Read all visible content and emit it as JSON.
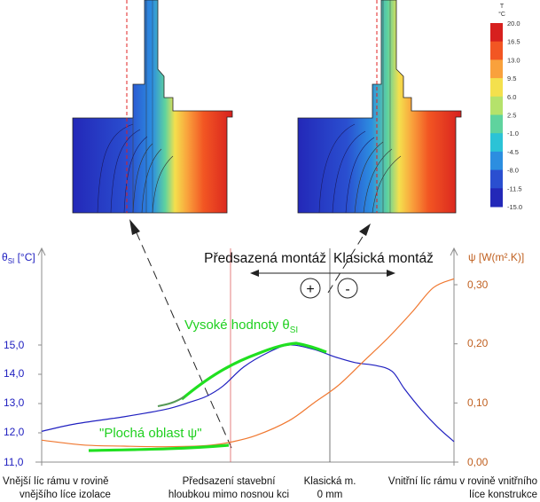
{
  "colorbar": {
    "unit_t": "T",
    "unit_c": "°C",
    "ticks": [
      "20.0",
      "16.5",
      "13.0",
      "9.5",
      "6.0",
      "2.5",
      "-1.0",
      "-4.5",
      "-8.0",
      "-11.5",
      "-15.0"
    ],
    "colors": [
      "#d7201e",
      "#f25623",
      "#f9a13c",
      "#f4e04d",
      "#b5e26b",
      "#5fd39e",
      "#2bc3d6",
      "#2c8ee0",
      "#2a4fd0",
      "#2328b8"
    ]
  },
  "annotations": {
    "mode_front": "Předsazená montáž",
    "mode_classic": "Klasická montáž",
    "plus_sign": "+",
    "minus_sign": "-",
    "high_values": "Vysoké hodnoty θ",
    "high_values_sub": "SI",
    "flat_area": "\"Plochá oblast ψ\""
  },
  "axes": {
    "left_label_main": "θ",
    "left_label_sub": "SI",
    "left_label_unit": " [°C]",
    "right_label": "ψ [W(m².K)]",
    "left_ticks": [
      "15,0",
      "14,0",
      "13,0",
      "12,0",
      "11,0"
    ],
    "right_ticks": [
      "0,30",
      "0,20",
      "0,10",
      "0,00"
    ]
  },
  "x_labels": {
    "left_1": "Vnější líc rámu v rovině",
    "left_2": "vnějšího líce izolace",
    "mid_1": "Předsazení stavební",
    "mid_2": "hloubkou mimo nosnou kci",
    "classic_1": "Klasická m.",
    "classic_2": "0 mm",
    "right_1": "Vnitřní líc rámu v rovině vnitřního",
    "right_2": "líce konstrukce"
  },
  "chart_data": {
    "type": "line",
    "y_left": {
      "label": "θSI [°C]",
      "ylim": [
        11.0,
        16.0
      ],
      "ticks": [
        11.0,
        12.0,
        13.0,
        14.0,
        15.0
      ]
    },
    "y_right": {
      "label": "ψ [W(m².K)]",
      "ylim": [
        0.0,
        0.33
      ],
      "ticks": [
        0.0,
        0.1,
        0.2,
        0.3
      ]
    },
    "x_positions": [
      {
        "name": "Vnější líc rámu v rovině vnějšího líce izolace",
        "x": 0.0
      },
      {
        "name": "Předsazení stavební hloubkou mimo nosnou kci",
        "x": 0.465
      },
      {
        "name": "Klasická m. 0 mm",
        "x": 0.707
      },
      {
        "name": "Vnitřní líc rámu v rovině vnitřního líce konstrukce",
        "x": 1.0
      }
    ],
    "series": [
      {
        "axis": "left",
        "color": "#2020c0",
        "points": [
          [
            0.0,
            12.05
          ],
          [
            0.08,
            12.3
          ],
          [
            0.2,
            12.55
          ],
          [
            0.3,
            12.8
          ],
          [
            0.36,
            13.05
          ],
          [
            0.4,
            13.25
          ],
          [
            0.44,
            13.6
          ],
          [
            0.49,
            14.25
          ],
          [
            0.55,
            14.75
          ],
          [
            0.6,
            15.0
          ],
          [
            0.66,
            14.85
          ],
          [
            0.71,
            14.6
          ],
          [
            0.76,
            14.4
          ],
          [
            0.81,
            14.3
          ],
          [
            0.85,
            14.1
          ],
          [
            0.88,
            13.5
          ],
          [
            0.92,
            12.8
          ],
          [
            0.96,
            12.2
          ],
          [
            1.0,
            11.7
          ]
        ]
      },
      {
        "axis": "right",
        "color": "#f07830",
        "points": [
          [
            0.0,
            0.037
          ],
          [
            0.1,
            0.029
          ],
          [
            0.2,
            0.027
          ],
          [
            0.3,
            0.026
          ],
          [
            0.4,
            0.028
          ],
          [
            0.46,
            0.034
          ],
          [
            0.52,
            0.045
          ],
          [
            0.6,
            0.07
          ],
          [
            0.66,
            0.1
          ],
          [
            0.72,
            0.13
          ],
          [
            0.78,
            0.17
          ],
          [
            0.84,
            0.21
          ],
          [
            0.9,
            0.255
          ],
          [
            0.95,
            0.295
          ],
          [
            1.0,
            0.31
          ]
        ]
      }
    ]
  }
}
